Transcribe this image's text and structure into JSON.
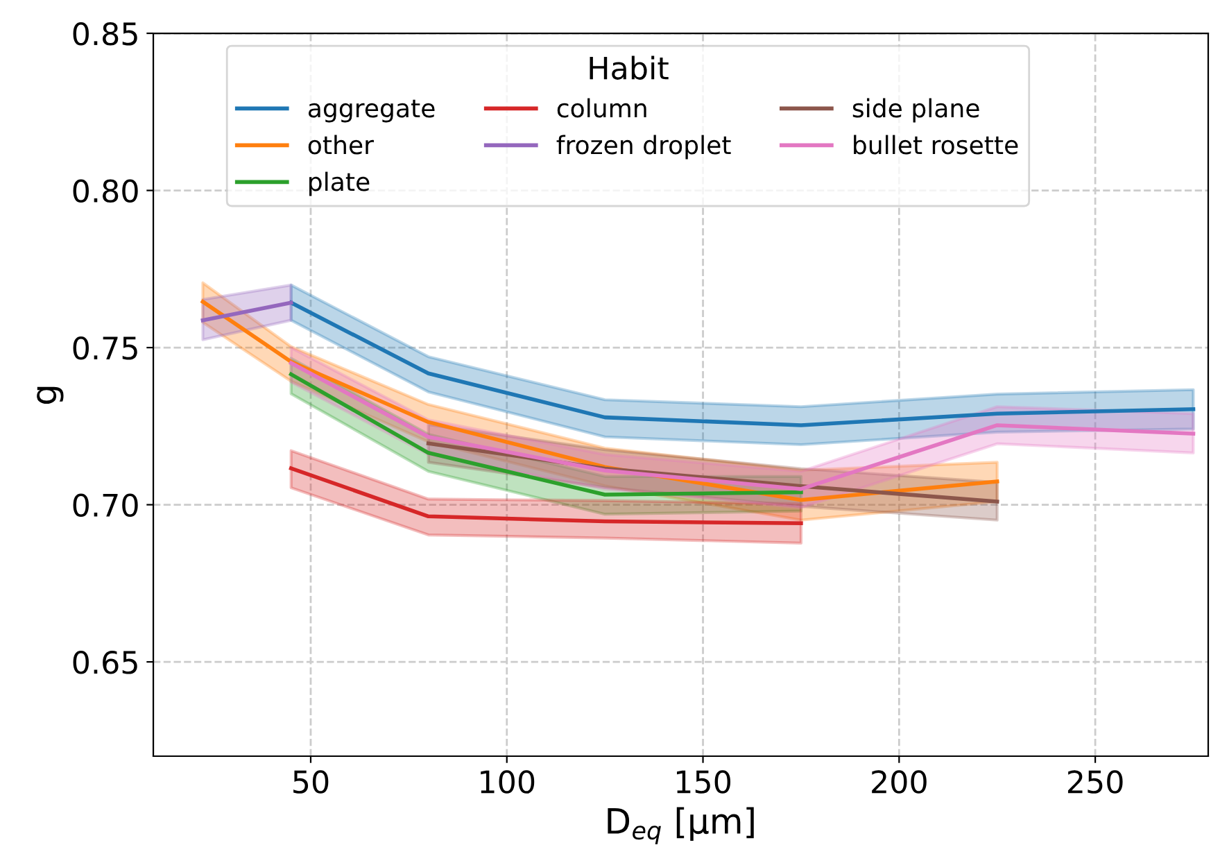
{
  "chart_data": {
    "type": "line",
    "xlabel": "D$_{eq}$ [μm]",
    "ylabel": "g",
    "legend_title": "Habit",
    "xlim": [
      9.875,
      278.8
    ],
    "ylim": [
      0.62,
      0.85
    ],
    "xticks": [
      50,
      100,
      150,
      200,
      250
    ],
    "yticks": [
      {
        "value": 0.65,
        "label": "0.65"
      },
      {
        "value": 0.7,
        "label": "0.70"
      },
      {
        "value": 0.75,
        "label": "0.75"
      },
      {
        "value": 0.8,
        "label": "0.80"
      },
      {
        "value": 0.85,
        "label": "0.85"
      }
    ],
    "grid": true,
    "legend": "top",
    "marker": "none",
    "line_style": "solid",
    "series": [
      {
        "name": "aggregate",
        "color": "#1f77b4",
        "x": [
          45,
          80,
          125,
          175,
          225,
          275
        ],
        "values": [
          0.7643,
          0.7418,
          0.7278,
          0.7253,
          0.729,
          0.7304
        ],
        "lower": [
          0.7587,
          0.7359,
          0.7216,
          0.7191,
          0.7231,
          0.7241
        ],
        "upper": [
          0.7699,
          0.7471,
          0.7334,
          0.7312,
          0.7352,
          0.7366
        ]
      },
      {
        "name": "other",
        "color": "#ff7f0e",
        "x": [
          22.5,
          45,
          80,
          125,
          175,
          225
        ],
        "values": [
          0.7646,
          0.7455,
          0.7263,
          0.712,
          0.7015,
          0.7074
        ],
        "lower": [
          0.758,
          0.7393,
          0.72,
          0.706,
          0.6951,
          0.701
        ],
        "upper": [
          0.7706,
          0.7503,
          0.7319,
          0.718,
          0.711,
          0.7135
        ]
      },
      {
        "name": "plate",
        "color": "#2ca02c",
        "x": [
          45,
          80,
          125,
          175
        ],
        "values": [
          0.7415,
          0.7165,
          0.7032,
          0.704
        ],
        "lower": [
          0.7353,
          0.7106,
          0.697,
          0.698
        ],
        "upper": [
          0.7466,
          0.7224,
          0.709,
          0.709
        ]
      },
      {
        "name": "column",
        "color": "#d62728",
        "x": [
          45,
          80,
          125,
          175
        ],
        "values": [
          0.7116,
          0.6963,
          0.6947,
          0.6941
        ],
        "lower": [
          0.7054,
          0.6904,
          0.6894,
          0.6878
        ],
        "upper": [
          0.7172,
          0.7018,
          0.7013,
          0.7003
        ]
      },
      {
        "name": "frozen droplet",
        "color": "#9467bd",
        "x": [
          22.5,
          45
        ],
        "values": [
          0.7587,
          0.7643
        ],
        "lower": [
          0.7525,
          0.7587
        ],
        "upper": [
          0.7653,
          0.7699
        ]
      },
      {
        "name": "side plane",
        "color": "#8c564b",
        "x": [
          80,
          125,
          175,
          225
        ],
        "values": [
          0.7195,
          0.7115,
          0.7059,
          0.701
        ],
        "lower": [
          0.7135,
          0.7055,
          0.6995,
          0.6951
        ],
        "upper": [
          0.7255,
          0.7175,
          0.7115,
          0.7071
        ]
      },
      {
        "name": "bullet rosette",
        "color": "#e377c2",
        "x": [
          45,
          80,
          125,
          175,
          225,
          275
        ],
        "values": [
          0.7451,
          0.7216,
          0.7109,
          0.705,
          0.7253,
          0.7226
        ],
        "lower": [
          0.739,
          0.716,
          0.705,
          0.6991,
          0.7194,
          0.7165
        ],
        "upper": [
          0.75,
          0.727,
          0.716,
          0.7106,
          0.7312,
          0.729
        ]
      }
    ]
  }
}
